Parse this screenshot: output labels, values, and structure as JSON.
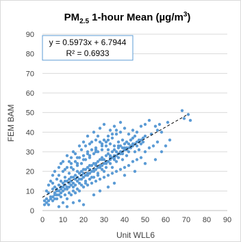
{
  "chart_data": {
    "type": "scatter",
    "title": {
      "main": "PM",
      "sub": "2.5",
      "rest_open": " 1-hour Mean (µg/m",
      "sup": "3",
      "rest_close": ")"
    },
    "xlabel": "Unit WLL6",
    "ylabel": "FEM BAM",
    "xlim": [
      0,
      90
    ],
    "ylim": [
      0,
      90
    ],
    "xticks": [
      0,
      10,
      20,
      30,
      40,
      50,
      60,
      70,
      80,
      90
    ],
    "yticks": [
      0,
      10,
      20,
      30,
      40,
      50,
      60,
      70,
      80,
      90
    ],
    "grid": "horizontal",
    "trendline": {
      "equation": "y = 0.5973x + 6.7944",
      "r_squared": "R² = 0.6933",
      "slope": 0.5973,
      "intercept": 6.7944,
      "x_range": [
        0,
        71
      ],
      "style": "dashed",
      "color": "#000000"
    },
    "series": [
      {
        "marker_color": "#5b9bd5",
        "points": [
          [
            68,
            51
          ],
          [
            71,
            49
          ],
          [
            72,
            46
          ],
          [
            69,
            47
          ],
          [
            61,
            45
          ],
          [
            52,
            46
          ],
          [
            57,
            44
          ],
          [
            55,
            43
          ],
          [
            56,
            41
          ],
          [
            53,
            39
          ],
          [
            58,
            40
          ],
          [
            50,
            38
          ],
          [
            48,
            34
          ],
          [
            46,
            35
          ],
          [
            45,
            38
          ],
          [
            47,
            31
          ],
          [
            44,
            33
          ],
          [
            43,
            36
          ],
          [
            42,
            30
          ],
          [
            41,
            28
          ],
          [
            40,
            32
          ],
          [
            39,
            26
          ],
          [
            38,
            29
          ],
          [
            37,
            33
          ],
          [
            36,
            25
          ],
          [
            35,
            28
          ],
          [
            34,
            22
          ],
          [
            33,
            27
          ],
          [
            32,
            31
          ],
          [
            31,
            24
          ],
          [
            30,
            20
          ],
          [
            29,
            26
          ],
          [
            28,
            22
          ],
          [
            27,
            18
          ],
          [
            26,
            24
          ],
          [
            25,
            21
          ],
          [
            24,
            17
          ],
          [
            23,
            23
          ],
          [
            22,
            19
          ],
          [
            21,
            15
          ],
          [
            20,
            21
          ],
          [
            19,
            18
          ],
          [
            18,
            14
          ],
          [
            17,
            20
          ],
          [
            16,
            16
          ],
          [
            15,
            12
          ],
          [
            14,
            17
          ],
          [
            13,
            14
          ],
          [
            12,
            11
          ],
          [
            11,
            15
          ],
          [
            10,
            12
          ],
          [
            9,
            9
          ],
          [
            8,
            13
          ],
          [
            7,
            10
          ],
          [
            6,
            8
          ],
          [
            5,
            11
          ],
          [
            4,
            7
          ],
          [
            3,
            9
          ],
          [
            2,
            6
          ],
          [
            1,
            5
          ],
          [
            2,
            10
          ],
          [
            3,
            13
          ],
          [
            4,
            15
          ],
          [
            5,
            14
          ],
          [
            6,
            12
          ],
          [
            7,
            16
          ],
          [
            8,
            18
          ],
          [
            9,
            15
          ],
          [
            10,
            20
          ],
          [
            11,
            17
          ],
          [
            12,
            22
          ],
          [
            13,
            19
          ],
          [
            14,
            24
          ],
          [
            15,
            21
          ],
          [
            16,
            25
          ],
          [
            17,
            23
          ],
          [
            18,
            27
          ],
          [
            19,
            24
          ],
          [
            20,
            28
          ],
          [
            21,
            26
          ],
          [
            22,
            30
          ],
          [
            23,
            27
          ],
          [
            24,
            31
          ],
          [
            25,
            29
          ],
          [
            26,
            32
          ],
          [
            27,
            30
          ],
          [
            28,
            35
          ],
          [
            29,
            33
          ],
          [
            30,
            36
          ],
          [
            31,
            33
          ],
          [
            32,
            38
          ],
          [
            33,
            34
          ],
          [
            34,
            37
          ],
          [
            35,
            33
          ],
          [
            36,
            39
          ],
          [
            37,
            35
          ],
          [
            38,
            40
          ],
          [
            39,
            36
          ],
          [
            40,
            42
          ],
          [
            42,
            39
          ],
          [
            44,
            41
          ],
          [
            46,
            40
          ],
          [
            48,
            43
          ],
          [
            50,
            44
          ],
          [
            10,
            4
          ],
          [
            12,
            6
          ],
          [
            14,
            8
          ],
          [
            16,
            9
          ],
          [
            18,
            10
          ],
          [
            20,
            12
          ],
          [
            22,
            13
          ],
          [
            24,
            14
          ],
          [
            26,
            15
          ],
          [
            28,
            16
          ],
          [
            30,
            17
          ],
          [
            32,
            18
          ],
          [
            34,
            19
          ],
          [
            36,
            20
          ],
          [
            38,
            21
          ],
          [
            40,
            22
          ],
          [
            42,
            23
          ],
          [
            44,
            25
          ],
          [
            46,
            26
          ],
          [
            48,
            27
          ],
          [
            50,
            30
          ],
          [
            52,
            32
          ],
          [
            54,
            33
          ],
          [
            56,
            35
          ],
          [
            3,
            3
          ],
          [
            5,
            5
          ],
          [
            7,
            6
          ],
          [
            9,
            7
          ],
          [
            11,
            8
          ],
          [
            13,
            9
          ],
          [
            15,
            10
          ],
          [
            17,
            11
          ],
          [
            19,
            13
          ],
          [
            21,
            14
          ],
          [
            23,
            16
          ],
          [
            25,
            17
          ],
          [
            27,
            19
          ],
          [
            29,
            21
          ],
          [
            31,
            22
          ],
          [
            33,
            24
          ],
          [
            35,
            26
          ],
          [
            37,
            27
          ],
          [
            39,
            29
          ],
          [
            41,
            31
          ],
          [
            43,
            32
          ],
          [
            45,
            30
          ],
          [
            47,
            36
          ],
          [
            49,
            37
          ],
          [
            8,
            2
          ],
          [
            12,
            2
          ],
          [
            15,
            4
          ],
          [
            18,
            5
          ],
          [
            20,
            3
          ],
          [
            25,
            8
          ],
          [
            28,
            10
          ],
          [
            32,
            12
          ],
          [
            35,
            14
          ],
          [
            40,
            18
          ],
          [
            45,
            20
          ],
          [
            50,
            24
          ],
          [
            55,
            26
          ],
          [
            58,
            30
          ],
          [
            60,
            33
          ],
          [
            62,
            36
          ],
          [
            5,
            18
          ],
          [
            8,
            22
          ],
          [
            10,
            25
          ],
          [
            12,
            28
          ],
          [
            15,
            30
          ],
          [
            18,
            33
          ],
          [
            20,
            35
          ],
          [
            22,
            38
          ],
          [
            25,
            40
          ],
          [
            28,
            42
          ],
          [
            30,
            44
          ],
          [
            33,
            41
          ],
          [
            35,
            43
          ],
          [
            38,
            45
          ],
          [
            24,
            35
          ],
          [
            27,
            38
          ],
          [
            6,
            20
          ],
          [
            9,
            24
          ],
          [
            14,
            27
          ],
          [
            16,
            29
          ],
          [
            19,
            31
          ],
          [
            21,
            33
          ],
          [
            23,
            34
          ],
          [
            26,
            36
          ],
          [
            1,
            3
          ],
          [
            2,
            4
          ],
          [
            3,
            5
          ],
          [
            4,
            6
          ],
          [
            6,
            6
          ],
          [
            7,
            8
          ],
          [
            8,
            8
          ],
          [
            9,
            11
          ],
          [
            10,
            10
          ],
          [
            11,
            11
          ],
          [
            12,
            12
          ],
          [
            13,
            12
          ],
          [
            14,
            13
          ],
          [
            15,
            14
          ],
          [
            16,
            13
          ],
          [
            17,
            15
          ],
          [
            18,
            16
          ],
          [
            19,
            16
          ],
          [
            20,
            17
          ],
          [
            21,
            18
          ],
          [
            22,
            18
          ],
          [
            23,
            19
          ],
          [
            24,
            20
          ],
          [
            25,
            20
          ],
          [
            26,
            21
          ],
          [
            27,
            22
          ],
          [
            28,
            23
          ],
          [
            29,
            23
          ],
          [
            30,
            24
          ],
          [
            31,
            25
          ],
          [
            32,
            25
          ],
          [
            33,
            26
          ],
          [
            34,
            27
          ],
          [
            35,
            27
          ],
          [
            36,
            28
          ],
          [
            37,
            29
          ],
          [
            38,
            30
          ],
          [
            39,
            30
          ],
          [
            40,
            31
          ],
          [
            41,
            32
          ],
          [
            42,
            32
          ],
          [
            43,
            33
          ],
          [
            44,
            34
          ],
          [
            45,
            34
          ],
          [
            46,
            33
          ],
          [
            47,
            35
          ],
          [
            48,
            36
          ],
          [
            49,
            35
          ],
          [
            13,
            25
          ],
          [
            17,
            27
          ],
          [
            22,
            29
          ],
          [
            26,
            31
          ],
          [
            29,
            34
          ],
          [
            32,
            36
          ],
          [
            34,
            39
          ],
          [
            36,
            41
          ],
          [
            11,
            21
          ],
          [
            14,
            22
          ],
          [
            17,
            24
          ],
          [
            20,
            26
          ],
          [
            23,
            28
          ],
          [
            26,
            30
          ],
          [
            29,
            31
          ],
          [
            31,
            35
          ],
          [
            5,
            7
          ],
          [
            6,
            9
          ],
          [
            7,
            11
          ],
          [
            8,
            10
          ],
          [
            9,
            12
          ],
          [
            10,
            14
          ],
          [
            11,
            13
          ],
          [
            12,
            15
          ],
          [
            13,
            16
          ],
          [
            14,
            15
          ],
          [
            15,
            17
          ],
          [
            16,
            18
          ],
          [
            17,
            17
          ],
          [
            18,
            19
          ],
          [
            19,
            20
          ],
          [
            20,
            19
          ],
          [
            21,
            21
          ],
          [
            22,
            22
          ],
          [
            23,
            21
          ],
          [
            24,
            23
          ],
          [
            25,
            24
          ],
          [
            26,
            23
          ],
          [
            27,
            25
          ],
          [
            28,
            26
          ],
          [
            29,
            27
          ],
          [
            30,
            26
          ],
          [
            31,
            28
          ],
          [
            32,
            29
          ],
          [
            33,
            28
          ],
          [
            34,
            30
          ],
          [
            35,
            31
          ],
          [
            36,
            30
          ],
          [
            37,
            32
          ],
          [
            38,
            33
          ],
          [
            39,
            32
          ],
          [
            40,
            34
          ],
          [
            41,
            35
          ],
          [
            42,
            34
          ],
          [
            43,
            36
          ],
          [
            44,
            37
          ]
        ]
      }
    ]
  }
}
